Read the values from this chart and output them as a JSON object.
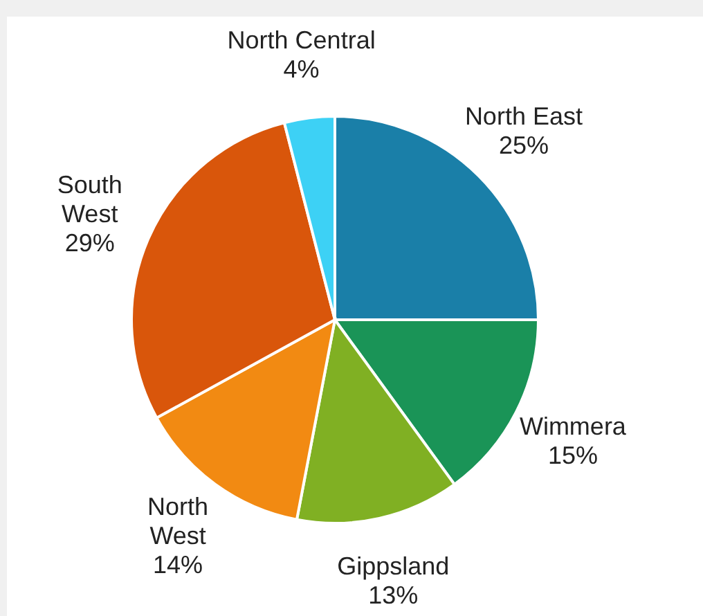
{
  "chart_data": {
    "type": "pie",
    "categories": [
      "North East",
      "Wimmera",
      "Gippsland",
      "North West",
      "South West",
      "North Central"
    ],
    "values": [
      25,
      15,
      13,
      14,
      29,
      4
    ],
    "colors": [
      "#1a7fa8",
      "#1a9457",
      "#80b023",
      "#f28a12",
      "#d9560b",
      "#3dd1f5"
    ],
    "value_labels": [
      "25%",
      "15%",
      "13%",
      "14%",
      "29%",
      "4%"
    ],
    "legend": false
  }
}
